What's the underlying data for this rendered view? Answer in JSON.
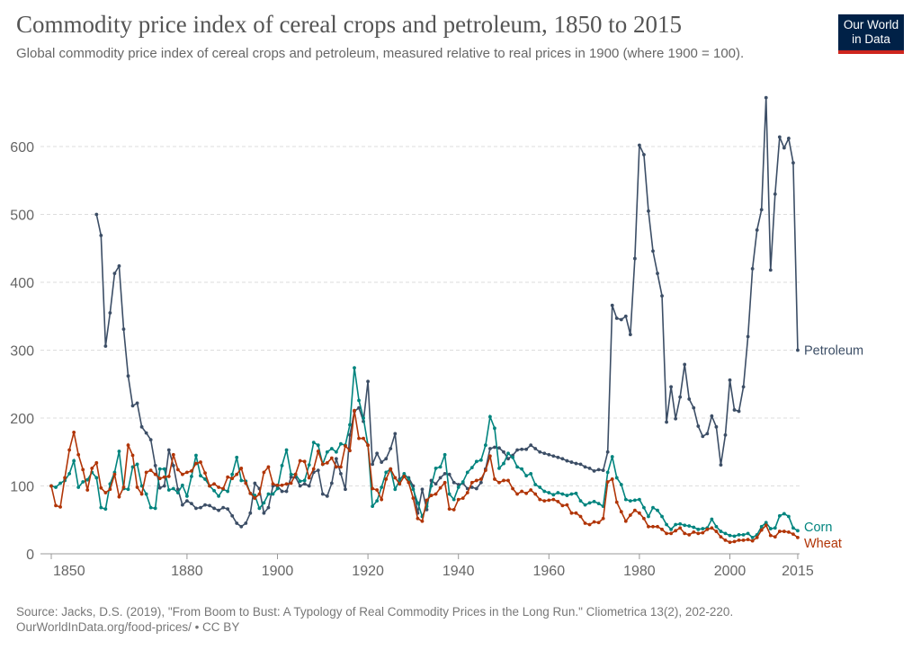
{
  "header": {
    "title": "Commodity price index of cereal crops and petroleum, 1850 to 2015",
    "subtitle": "Global commodity price index of cereal crops and petroleum, measured relative to real prices in 1900 (where 1900 = 100).",
    "logo_text": "Our World in Data"
  },
  "footer": {
    "source": "Source: Jacks, D.S. (2019), \"From Boom to Bust: A Typology of Real Commodity Prices in the Long Run.\" Cliometrica 13(2), 202-220.",
    "url_license": "OurWorldInData.org/food-prices/ • CC BY"
  },
  "chart_data": {
    "type": "line",
    "title": "Commodity price index of cereal crops and petroleum, 1850 to 2015",
    "xlim": [
      1850,
      2015
    ],
    "ylim": [
      0,
      680
    ],
    "x_ticks": [
      1850,
      1880,
      1900,
      1920,
      1940,
      1960,
      1980,
      2000,
      2015
    ],
    "y_ticks": [
      0,
      100,
      200,
      300,
      400,
      500,
      600
    ],
    "grid": "horizontal dashed",
    "legend": "inline labels at line ends (right)",
    "series": [
      {
        "name": "Petroleum",
        "color": "#3c4e66",
        "start_year": 1860,
        "values": [
          500,
          469,
          306,
          355,
          413,
          424,
          331,
          262,
          218,
          222,
          187,
          178,
          168,
          130,
          97,
          100,
          153,
          130,
          95,
          72,
          78,
          74,
          67,
          68,
          72,
          71,
          67,
          64,
          68,
          66,
          56,
          45,
          40,
          45,
          60,
          104,
          96,
          60,
          68,
          100,
          100,
          92,
          92,
          113,
          113,
          100,
          103,
          100,
          120,
          123,
          88,
          85,
          104,
          140,
          118,
          95,
          175,
          210,
          215,
          195,
          254,
          132,
          148,
          135,
          140,
          155,
          177,
          110,
          115,
          112,
          100,
          60,
          95,
          65,
          108,
          103,
          112,
          118,
          117,
          105,
          102,
          104,
          96,
          98,
          96,
          105,
          125,
          155,
          157,
          156,
          150,
          140,
          145,
          153,
          154,
          154,
          160,
          155,
          150,
          148,
          146,
          144,
          142,
          140,
          137,
          135,
          133,
          132,
          128,
          126,
          122,
          124,
          123,
          150,
          366,
          347,
          345,
          350,
          323,
          435,
          602,
          588,
          505,
          446,
          413,
          380,
          194,
          246,
          199,
          231,
          279,
          228,
          215,
          188,
          173,
          177,
          203,
          187,
          131,
          175,
          256,
          212,
          210,
          246,
          320,
          420,
          477,
          507,
          672,
          418,
          530,
          614,
          598,
          612,
          576,
          300
        ]
      },
      {
        "name": "Corn",
        "color": "#00847e",
        "start_year": 1850,
        "values": [
          100,
          98,
          104,
          108,
          118,
          137,
          98,
          106,
          109,
          120,
          112,
          68,
          66,
          103,
          120,
          151,
          96,
          95,
          128,
          132,
          100,
          88,
          68,
          67,
          125,
          125,
          94,
          96,
          90,
          101,
          85,
          114,
          145,
          115,
          110,
          100,
          93,
          85,
          95,
          92,
          117,
          142,
          108,
          107,
          89,
          86,
          67,
          75,
          88,
          88,
          96,
          130,
          153,
          117,
          117,
          107,
          108,
          131,
          164,
          160,
          132,
          150,
          155,
          150,
          162,
          160,
          190,
          274,
          226,
          200,
          160,
          70,
          78,
          98,
          120,
          125,
          95,
          108,
          118,
          110,
          95,
          75,
          55,
          70,
          100,
          126,
          128,
          146,
          88,
          80,
          98,
          106,
          120,
          127,
          136,
          138,
          160,
          202,
          185,
          126,
          133,
          148,
          142,
          128,
          125,
          115,
          118,
          102,
          98,
          92,
          90,
          87,
          90,
          88,
          86,
          88,
          89,
          78,
          72,
          75,
          77,
          74,
          70,
          120,
          143,
          112,
          102,
          80,
          78,
          79,
          80,
          68,
          55,
          68,
          64,
          55,
          43,
          36,
          43,
          44,
          42,
          41,
          39,
          36,
          37,
          38,
          51,
          40,
          33,
          30,
          27,
          26,
          28,
          28,
          30,
          24,
          28,
          40,
          46,
          37,
          38,
          56,
          59,
          55,
          38,
          34
        ]
      },
      {
        "name": "Wheat",
        "color": "#b13507",
        "start_year": 1850,
        "values": [
          100,
          71,
          69,
          112,
          153,
          179,
          146,
          124,
          94,
          126,
          134,
          97,
          90,
          95,
          117,
          84,
          98,
          160,
          145,
          98,
          88,
          120,
          123,
          117,
          111,
          113,
          114,
          146,
          124,
          117,
          120,
          122,
          133,
          135,
          119,
          100,
          103,
          98,
          96,
          113,
          111,
          117,
          126,
          104,
          89,
          82,
          88,
          120,
          128,
          103,
          101,
          101,
          103,
          104,
          117,
          137,
          136,
          112,
          125,
          151,
          132,
          134,
          141,
          128,
          128,
          159,
          152,
          211,
          170,
          170,
          160,
          96,
          94,
          80,
          110,
          125,
          112,
          103,
          114,
          105,
          82,
          52,
          48,
          79,
          86,
          88,
          97,
          105,
          66,
          65,
          80,
          82,
          90,
          105,
          108,
          110,
          123,
          144,
          110,
          105,
          108,
          108,
          96,
          88,
          92,
          89,
          94,
          88,
          80,
          78,
          79,
          80,
          77,
          71,
          72,
          60,
          60,
          55,
          45,
          43,
          47,
          46,
          52,
          106,
          110,
          76,
          62,
          48,
          57,
          64,
          60,
          52,
          40,
          40,
          40,
          36,
          30,
          30,
          34,
          38,
          30,
          28,
          32,
          30,
          31,
          36,
          38,
          33,
          25,
          20,
          17,
          18,
          20,
          20,
          21,
          19,
          24,
          35,
          42,
          27,
          25,
          33,
          33,
          32,
          29,
          24
        ]
      }
    ]
  }
}
